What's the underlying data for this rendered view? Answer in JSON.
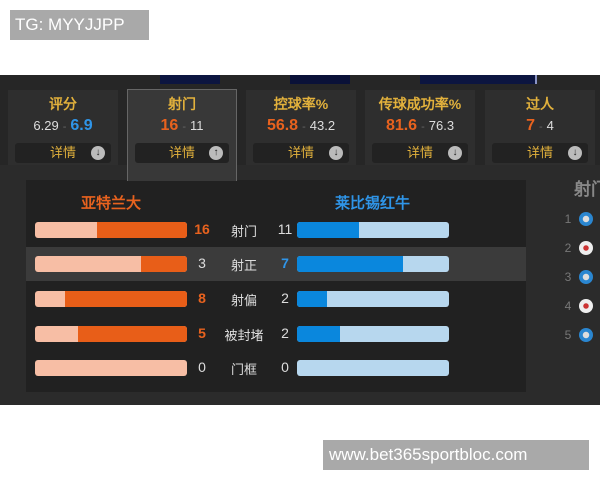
{
  "watermark": "TG: MYYJJPP",
  "footer_url": "www.bet365sportbloc.com",
  "colors": {
    "home": "#e85e18",
    "away": "#0a87dd",
    "gold": "#e2b13c"
  },
  "cards": [
    {
      "title": "评分",
      "home": "6.29",
      "away": "6.9",
      "leader": "away",
      "detail": "详情",
      "icon": "arrow-down-circle-icon"
    },
    {
      "title": "射门",
      "home": "16",
      "away": "11",
      "leader": "home",
      "detail": "详情",
      "icon": "arrow-up-circle-icon",
      "selected": true
    },
    {
      "title": "控球率%",
      "home": "56.8",
      "away": "43.2",
      "leader": "home",
      "detail": "详情",
      "icon": "arrow-down-circle-icon"
    },
    {
      "title": "传球成功率%",
      "home": "81.6",
      "away": "76.3",
      "leader": "home",
      "detail": "详情",
      "icon": "arrow-down-circle-icon"
    },
    {
      "title": "过人",
      "home": "7",
      "away": "4",
      "leader": "home",
      "detail": "详情",
      "icon": "arrow-down-circle-icon"
    }
  ],
  "teams": {
    "home": "亚特兰大",
    "away": "莱比锡红牛"
  },
  "rows": [
    {
      "label": "射门",
      "home": 16,
      "away": 11
    },
    {
      "label": "射正",
      "home": 3,
      "away": 7,
      "highlighted": true
    },
    {
      "label": "射偏",
      "home": 8,
      "away": 2
    },
    {
      "label": "被封堵",
      "home": 5,
      "away": 2
    },
    {
      "label": "门框",
      "home": 0,
      "away": 0
    }
  ],
  "side": {
    "title": "射门",
    "ranks": [
      {
        "n": "1",
        "team": "away"
      },
      {
        "n": "2",
        "team": "home"
      },
      {
        "n": "3",
        "team": "away"
      },
      {
        "n": "4",
        "team": "home"
      },
      {
        "n": "5",
        "team": "away"
      }
    ]
  }
}
